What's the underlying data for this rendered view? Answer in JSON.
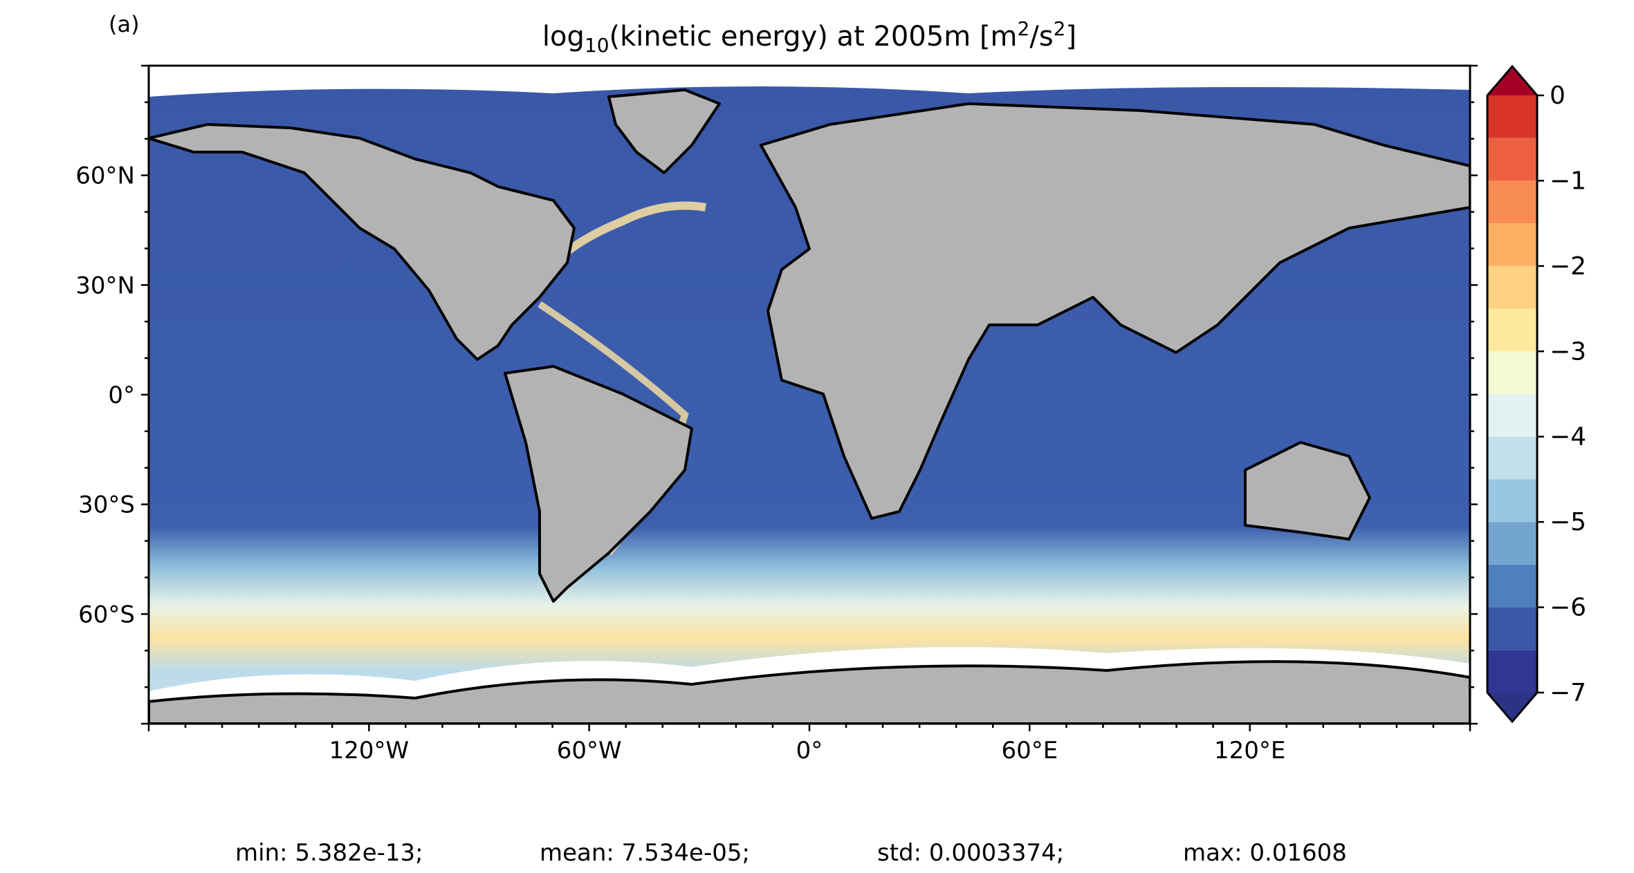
{
  "panel_label": "(a)",
  "title": {
    "prefix": "log",
    "subscript": "10",
    "middle": "(kinetic energy) at 2005m [m",
    "sup1": "2",
    "slash": "/s",
    "sup2": "2",
    "suffix": "]"
  },
  "chart_data": {
    "type": "heatmap",
    "projection": "plate-carree",
    "variable": "log10(kinetic energy) at 2005m",
    "units": "m^2/s^2",
    "xlim": [
      -180,
      180
    ],
    "ylim": [
      -90,
      90
    ],
    "x_ticks": [
      {
        "value": -120,
        "label": "120°W"
      },
      {
        "value": -60,
        "label": "60°W"
      },
      {
        "value": 0,
        "label": "0°"
      },
      {
        "value": 60,
        "label": "60°E"
      },
      {
        "value": 120,
        "label": "120°E"
      }
    ],
    "y_ticks": [
      {
        "value": 60,
        "label": "60°N"
      },
      {
        "value": 30,
        "label": "30°N"
      },
      {
        "value": 0,
        "label": "0°"
      },
      {
        "value": -30,
        "label": "30°S"
      },
      {
        "value": -60,
        "label": "60°S"
      }
    ],
    "colorbar": {
      "colormap": "RdYlBu_r",
      "min": -7,
      "max": 0,
      "step": 0.5,
      "extend": "both",
      "ticks": [
        {
          "value": 0,
          "label": "0"
        },
        {
          "value": -1,
          "label": "−1"
        },
        {
          "value": -2,
          "label": "−2"
        },
        {
          "value": -3,
          "label": "−3"
        },
        {
          "value": -4,
          "label": "−4"
        },
        {
          "value": -5,
          "label": "−5"
        },
        {
          "value": -6,
          "label": "−6"
        },
        {
          "value": -7,
          "label": "−7"
        }
      ],
      "colors": [
        "#313695",
        "#3a58a8",
        "#4f7fbc",
        "#74a5cf",
        "#99c6e0",
        "#c1e0ec",
        "#e2f2f2",
        "#f5fbd3",
        "#fee99d",
        "#fdd283",
        "#fcb162",
        "#f88c51",
        "#ed6140",
        "#d83528",
        "#b50f26"
      ],
      "under_color": "#2b3386",
      "over_color": "#a50026"
    },
    "land_color": "#b3b3b3",
    "missing_color": "#ffffff",
    "coastline_color": "#000000"
  },
  "stats": {
    "min_label": "min: 5.382e-13;",
    "mean_label": "mean: 7.534e-05;",
    "std_label": "std: 0.0003374;",
    "max_label": "max: 0.01608"
  }
}
